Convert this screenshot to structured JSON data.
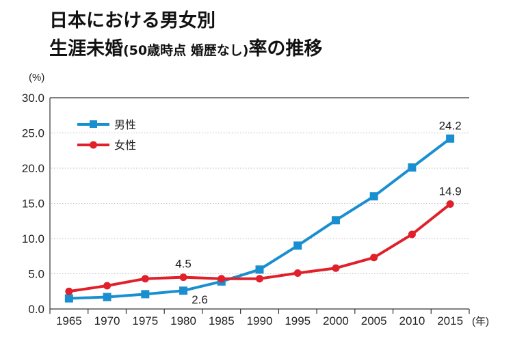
{
  "title": {
    "line1": "日本における男女別",
    "line2_main": "生涯未婚",
    "line2_paren": "(50歳時点 婚歴なし)",
    "line2_tail": "率の推移"
  },
  "chart_data": {
    "type": "line",
    "title": "日本における男女別 生涯未婚(50歳時点 婚歴なし)率の推移",
    "xlabel": "(年)",
    "ylabel": "(%)",
    "ylim": [
      0,
      30
    ],
    "yticks": [
      "0.0",
      "5.0",
      "10.0",
      "15.0",
      "20.0",
      "25.0",
      "30.0"
    ],
    "ytick_values": [
      0,
      5,
      10,
      15,
      20,
      25,
      30
    ],
    "categories": [
      "1965",
      "1970",
      "1975",
      "1980",
      "1985",
      "1990",
      "1995",
      "2000",
      "2005",
      "2010",
      "2015"
    ],
    "grid": "horizontal dotted",
    "legend_position": "top-left",
    "series": [
      {
        "name": "男性",
        "color": "#1a8fd0",
        "marker": "square",
        "values": [
          1.5,
          1.7,
          2.1,
          2.6,
          3.9,
          5.6,
          9.0,
          12.6,
          16.0,
          20.1,
          24.2
        ]
      },
      {
        "name": "女性",
        "color": "#e0202a",
        "marker": "circle",
        "values": [
          2.5,
          3.3,
          4.3,
          4.5,
          4.3,
          4.3,
          5.1,
          5.8,
          7.3,
          10.6,
          14.9
        ]
      }
    ],
    "annotations": [
      {
        "series": "女性",
        "category": "1980",
        "text": "4.5",
        "placement": "above"
      },
      {
        "series": "男性",
        "category": "1980",
        "text": "2.6",
        "placement": "below-right"
      },
      {
        "series": "男性",
        "category": "2015",
        "text": "24.2",
        "placement": "above"
      },
      {
        "series": "女性",
        "category": "2015",
        "text": "14.9",
        "placement": "above"
      }
    ]
  }
}
